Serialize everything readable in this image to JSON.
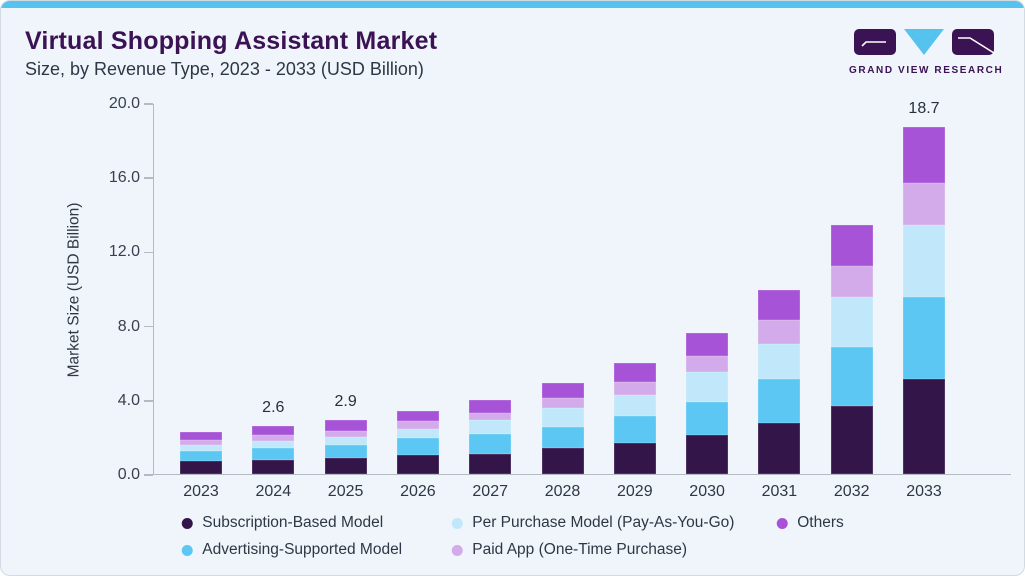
{
  "header": {
    "title": "Virtual Shopping Assistant Market",
    "subtitle": "Size, by Revenue Type, 2023 - 2033 (USD Billion)",
    "logo_text": "GRAND VIEW RESEARCH"
  },
  "colors": {
    "background": "#eff5fa",
    "accent_bar": "#55c3ee",
    "title": "#3b1254",
    "axis_line": "#b4bac2",
    "logo_purple": "#3b1254",
    "logo_cyan": "#55c3ee"
  },
  "chart_data": {
    "type": "bar",
    "stacked": true,
    "title": "Virtual Shopping Assistant Market Size, by Revenue Type, 2023 - 2033 (USD Billion)",
    "xlabel": "",
    "ylabel": "Market Size (USD Billion)",
    "ylim": [
      0,
      20
    ],
    "ytick_labels": [
      "0.0",
      "4.0",
      "8.0",
      "12.0",
      "16.0",
      "20.0"
    ],
    "grid": false,
    "legend_position": "bottom",
    "categories": [
      "2023",
      "2024",
      "2025",
      "2026",
      "2027",
      "2028",
      "2029",
      "2030",
      "2031",
      "2032",
      "2033"
    ],
    "series": [
      {
        "name": "Subscription-Based Model",
        "color": "#331549",
        "values": [
          0.7,
          0.75,
          0.85,
          1.0,
          1.1,
          1.4,
          1.65,
          2.1,
          2.75,
          3.65,
          5.1
        ]
      },
      {
        "name": "Advertising-Supported Model",
        "color": "#5bc7f2",
        "values": [
          0.55,
          0.65,
          0.7,
          0.95,
          1.05,
          1.15,
          1.5,
          1.8,
          2.35,
          3.2,
          4.45
        ]
      },
      {
        "name": "Per Purchase Model (Pay-As-You-Go)",
        "color": "#c1e8fa",
        "values": [
          0.32,
          0.4,
          0.45,
          0.45,
          0.75,
          1.0,
          1.1,
          1.6,
          1.9,
          2.7,
          3.85
        ]
      },
      {
        "name": "Paid App (One-Time Purchase)",
        "color": "#d3abea",
        "values": [
          0.27,
          0.3,
          0.3,
          0.45,
          0.4,
          0.55,
          0.7,
          0.85,
          1.3,
          1.65,
          2.3
        ]
      },
      {
        "name": "Others",
        "color": "#a753d8",
        "values": [
          0.43,
          0.5,
          0.6,
          0.55,
          0.7,
          0.8,
          1.05,
          1.25,
          1.6,
          2.2,
          3.0
        ]
      }
    ],
    "bar_total_labels": [
      "",
      "2.6",
      "2.9",
      "",
      "",
      "",
      "",
      "",
      "",
      "",
      "18.7"
    ],
    "legend_items": [
      {
        "label": "Subscription-Based Model",
        "color": "#331549"
      },
      {
        "label": "Per Purchase Model (Pay-As-You-Go)",
        "color": "#c1e8fa"
      },
      {
        "label": "Others",
        "color": "#a753d8"
      },
      {
        "label": "Advertising-Supported Model",
        "color": "#5bc7f2"
      },
      {
        "label": "Paid App (One-Time Purchase)",
        "color": "#d3abea"
      }
    ]
  }
}
